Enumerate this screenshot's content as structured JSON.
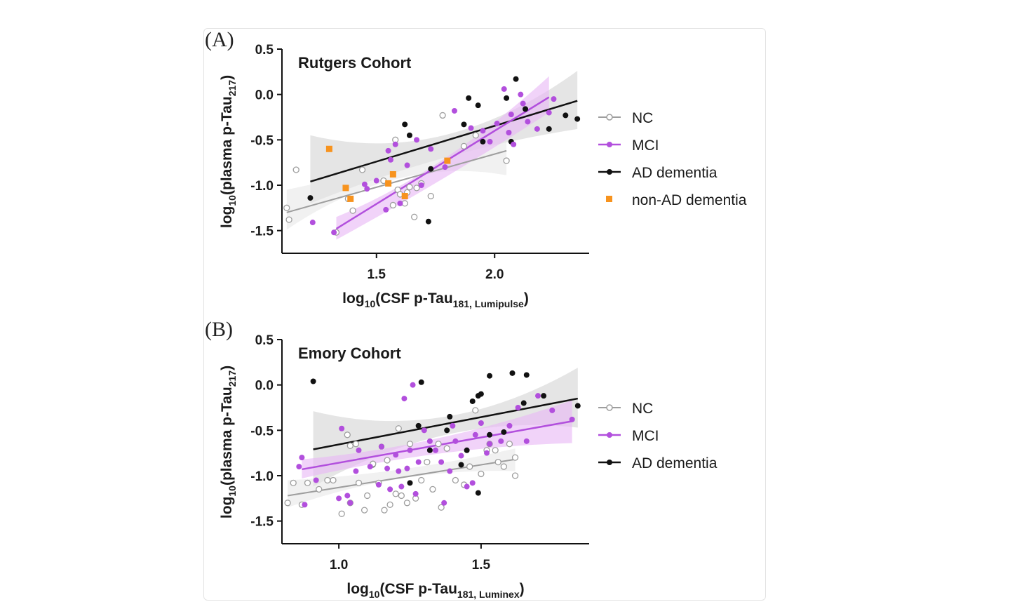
{
  "figure": {
    "panels": [
      {
        "letter": "(A)",
        "title": "Rutgers  Cohort",
        "ylabel": {
          "base": "log",
          "base_sub": "10",
          "mid": "(plasma p-Tau",
          "mid_sub": "217",
          "end": ")"
        },
        "xlabel": {
          "base": "log",
          "base_sub": "10",
          "mid": "(CSF p-Tau",
          "mid_sub": "181, Lumipulse",
          "end": ")"
        },
        "legend": [
          "NC",
          "MCI",
          "AD dementia",
          "non-AD dementia"
        ]
      },
      {
        "letter": "(B)",
        "title": "Emory  Cohort",
        "ylabel": {
          "base": "log",
          "base_sub": "10",
          "mid": "(plasma p-Tau",
          "mid_sub": "217",
          "end": ")"
        },
        "xlabel": {
          "base": "log",
          "base_sub": "10",
          "mid": "(CSF p-Tau",
          "mid_sub": "181, Luminex",
          "end": ")"
        },
        "legend": [
          "NC",
          "MCI",
          "AD dementia"
        ]
      }
    ]
  },
  "colors": {
    "NC": "#9e9e9e",
    "MCI": "#b24fdd",
    "AD dementia": "#111111",
    "non-AD dementia": "#f7931e",
    "NC_band": "#e6e6e6",
    "MCI_band": "#e7b5f5",
    "AD_band": "#d3d3d3"
  },
  "chart_data": [
    {
      "type": "scatter",
      "title": "Rutgers  Cohort",
      "xlim": [
        1.1,
        2.4
      ],
      "ylim": [
        -1.75,
        0.5
      ],
      "xticks": [
        1.5,
        2.0
      ],
      "xtick_labels": [
        "1.5",
        "2.0"
      ],
      "yticks": [
        0.5,
        0.0,
        -0.5,
        -1.0,
        -1.5
      ],
      "ytick_labels": [
        "0.5",
        "0.0",
        "-0.5",
        "-1.0",
        "-1.5"
      ],
      "grid": false,
      "legend_position": "right",
      "series": [
        {
          "name": "NC",
          "marker": "open-circle",
          "points": [
            [
              1.12,
              -1.25
            ],
            [
              1.13,
              -1.38
            ],
            [
              1.16,
              -0.83
            ],
            [
              1.33,
              -1.52
            ],
            [
              1.38,
              -1.15
            ],
            [
              1.4,
              -1.28
            ],
            [
              1.44,
              -0.83
            ],
            [
              1.53,
              -0.95
            ],
            [
              1.57,
              -1.22
            ],
            [
              1.58,
              -0.5
            ],
            [
              1.59,
              -1.05
            ],
            [
              1.6,
              -1.1
            ],
            [
              1.62,
              -1.2
            ],
            [
              1.63,
              -1.08
            ],
            [
              1.64,
              -1.02
            ],
            [
              1.66,
              -1.35
            ],
            [
              1.67,
              -1.03
            ],
            [
              1.69,
              -0.98
            ],
            [
              1.73,
              -1.12
            ],
            [
              1.78,
              -0.23
            ],
            [
              1.87,
              -0.57
            ],
            [
              1.92,
              -0.45
            ],
            [
              2.05,
              -0.73
            ]
          ],
          "fit": {
            "x": [
              1.12,
              2.05
            ],
            "y": [
              -1.3,
              -0.62
            ]
          },
          "band": {
            "x": [
              1.12,
              2.05
            ],
            "lower_start": -1.49,
            "upper_start": -1.05,
            "lower_mid": -0.93,
            "upper_mid": -0.74,
            "lower_end": -0.89,
            "upper_end": -0.3
          }
        },
        {
          "name": "MCI",
          "marker": "filled-circle",
          "points": [
            [
              1.23,
              -1.41
            ],
            [
              1.32,
              -1.52
            ],
            [
              1.45,
              -0.99
            ],
            [
              1.46,
              -1.04
            ],
            [
              1.5,
              -0.95
            ],
            [
              1.54,
              -1.27
            ],
            [
              1.55,
              -0.62
            ],
            [
              1.56,
              -0.72
            ],
            [
              1.58,
              -0.55
            ],
            [
              1.6,
              -1.2
            ],
            [
              1.63,
              -0.78
            ],
            [
              1.67,
              -0.5
            ],
            [
              1.69,
              -1.0
            ],
            [
              1.73,
              -0.6
            ],
            [
              1.79,
              -0.8
            ],
            [
              1.83,
              -0.18
            ],
            [
              1.9,
              -0.37
            ],
            [
              1.95,
              -0.4
            ],
            [
              1.98,
              -0.52
            ],
            [
              2.01,
              -0.32
            ],
            [
              2.04,
              0.06
            ],
            [
              2.06,
              -0.42
            ],
            [
              2.07,
              -0.22
            ],
            [
              2.08,
              -0.55
            ],
            [
              2.11,
              0.0
            ],
            [
              2.12,
              -0.1
            ],
            [
              2.14,
              -0.3
            ],
            [
              2.18,
              -0.38
            ],
            [
              2.23,
              -0.2
            ],
            [
              2.25,
              -0.05
            ]
          ],
          "fit": {
            "x": [
              1.33,
              2.23
            ],
            "y": [
              -1.48,
              -0.03
            ]
          },
          "band": {
            "x": [
              1.33,
              2.23
            ],
            "lower_start": -1.6,
            "upper_start": -1.35,
            "lower_mid": -0.93,
            "upper_mid": -0.72,
            "lower_end": -0.2,
            "upper_end": 0.2
          }
        },
        {
          "name": "AD dementia",
          "marker": "filled-circle",
          "points": [
            [
              1.22,
              -1.14
            ],
            [
              1.62,
              -0.33
            ],
            [
              1.64,
              -0.45
            ],
            [
              1.72,
              -1.4
            ],
            [
              1.73,
              -0.82
            ],
            [
              1.87,
              -0.33
            ],
            [
              1.89,
              -0.04
            ],
            [
              1.93,
              -0.12
            ],
            [
              1.95,
              -0.52
            ],
            [
              2.05,
              -0.04
            ],
            [
              2.07,
              -0.52
            ],
            [
              2.09,
              0.17
            ],
            [
              2.13,
              -0.16
            ],
            [
              2.23,
              -0.38
            ],
            [
              2.3,
              -0.23
            ],
            [
              2.35,
              -0.27
            ]
          ],
          "fit": {
            "x": [
              1.22,
              2.35
            ],
            "y": [
              -0.96,
              -0.07
            ]
          },
          "band": {
            "x": [
              1.22,
              2.35
            ],
            "lower_start": -1.2,
            "upper_start": -0.45,
            "lower_mid": -0.7,
            "upper_mid": -0.45,
            "lower_end": -0.38,
            "upper_end": 0.26
          }
        },
        {
          "name": "non-AD dementia",
          "marker": "filled-square",
          "points": [
            [
              1.3,
              -0.6
            ],
            [
              1.37,
              -1.03
            ],
            [
              1.39,
              -1.15
            ],
            [
              1.55,
              -0.98
            ],
            [
              1.57,
              -0.88
            ],
            [
              1.62,
              -1.12
            ],
            [
              1.8,
              -0.73
            ]
          ]
        }
      ],
      "xlabel": "log10(CSF p-Tau181, Lumipulse)",
      "ylabel": "log10(plasma p-Tau217)"
    },
    {
      "type": "scatter",
      "title": "Emory  Cohort",
      "xlim": [
        0.8,
        1.88
      ],
      "ylim": [
        -1.75,
        0.5
      ],
      "xticks": [
        1.0,
        1.5
      ],
      "xtick_labels": [
        "1.0",
        "1.5"
      ],
      "yticks": [
        0.5,
        0.0,
        -0.5,
        -1.0,
        -1.5
      ],
      "ytick_labels": [
        "0.5",
        "0.0",
        "-0.5",
        "-1.0",
        "-1.5"
      ],
      "grid": false,
      "legend_position": "right",
      "series": [
        {
          "name": "NC",
          "marker": "open-circle",
          "points": [
            [
              0.82,
              -1.3
            ],
            [
              0.84,
              -1.08
            ],
            [
              0.87,
              -1.32
            ],
            [
              0.89,
              -1.08
            ],
            [
              0.93,
              -1.15
            ],
            [
              0.96,
              -1.05
            ],
            [
              0.98,
              -1.05
            ],
            [
              1.01,
              -1.42
            ],
            [
              1.03,
              -0.55
            ],
            [
              1.04,
              -0.67
            ],
            [
              1.04,
              -1.3
            ],
            [
              1.06,
              -0.65
            ],
            [
              1.07,
              -1.08
            ],
            [
              1.09,
              -1.38
            ],
            [
              1.1,
              -1.22
            ],
            [
              1.12,
              -0.87
            ],
            [
              1.14,
              -1.08
            ],
            [
              1.16,
              -1.38
            ],
            [
              1.17,
              -0.83
            ],
            [
              1.18,
              -1.32
            ],
            [
              1.2,
              -1.2
            ],
            [
              1.21,
              -0.48
            ],
            [
              1.22,
              -1.22
            ],
            [
              1.24,
              -1.3
            ],
            [
              1.25,
              -0.65
            ],
            [
              1.27,
              -1.25
            ],
            [
              1.29,
              -1.05
            ],
            [
              1.31,
              -0.85
            ],
            [
              1.33,
              -1.15
            ],
            [
              1.35,
              -0.65
            ],
            [
              1.36,
              -1.35
            ],
            [
              1.38,
              -0.7
            ],
            [
              1.41,
              -1.05
            ],
            [
              1.44,
              -1.1
            ],
            [
              1.46,
              -0.9
            ],
            [
              1.48,
              -0.28
            ],
            [
              1.5,
              -0.98
            ],
            [
              1.52,
              -0.72
            ],
            [
              1.53,
              -0.65
            ],
            [
              1.55,
              -0.72
            ],
            [
              1.56,
              -0.85
            ],
            [
              1.58,
              -0.9
            ],
            [
              1.6,
              -0.65
            ],
            [
              1.62,
              -0.8
            ],
            [
              1.62,
              -1.0
            ]
          ],
          "fit": {
            "x": [
              0.82,
              1.62
            ],
            "y": [
              -1.22,
              -0.82
            ]
          },
          "band": {
            "x": [
              0.82,
              1.62
            ],
            "lower_start": -1.35,
            "upper_start": -1.05,
            "lower_mid": -1.03,
            "upper_mid": -0.93,
            "lower_end": -0.95,
            "upper_end": -0.7
          }
        },
        {
          "name": "MCI",
          "marker": "filled-circle",
          "points": [
            [
              0.86,
              -0.9
            ],
            [
              0.87,
              -0.8
            ],
            [
              0.88,
              -1.32
            ],
            [
              0.92,
              -1.05
            ],
            [
              1.0,
              -1.25
            ],
            [
              1.01,
              -0.48
            ],
            [
              1.03,
              -1.22
            ],
            [
              1.04,
              -1.3
            ],
            [
              1.06,
              -0.95
            ],
            [
              1.07,
              -0.72
            ],
            [
              1.11,
              -0.9
            ],
            [
              1.14,
              -1.1
            ],
            [
              1.15,
              -0.68
            ],
            [
              1.17,
              -0.92
            ],
            [
              1.18,
              -1.15
            ],
            [
              1.2,
              -0.77
            ],
            [
              1.21,
              -0.95
            ],
            [
              1.22,
              -1.12
            ],
            [
              1.23,
              -0.15
            ],
            [
              1.24,
              -0.92
            ],
            [
              1.25,
              -0.72
            ],
            [
              1.26,
              0.0
            ],
            [
              1.27,
              -1.2
            ],
            [
              1.28,
              -0.85
            ],
            [
              1.3,
              -0.5
            ],
            [
              1.32,
              -0.62
            ],
            [
              1.34,
              -0.72
            ],
            [
              1.36,
              -0.85
            ],
            [
              1.37,
              -1.3
            ],
            [
              1.39,
              -0.95
            ],
            [
              1.4,
              -0.45
            ],
            [
              1.41,
              -0.62
            ],
            [
              1.43,
              -0.78
            ],
            [
              1.45,
              -1.12
            ],
            [
              1.47,
              -1.08
            ],
            [
              1.48,
              -0.55
            ],
            [
              1.5,
              -0.42
            ],
            [
              1.52,
              -0.75
            ],
            [
              1.53,
              -0.65
            ],
            [
              1.57,
              -0.62
            ],
            [
              1.6,
              -0.45
            ],
            [
              1.63,
              -0.25
            ],
            [
              1.66,
              -0.62
            ],
            [
              1.7,
              -0.12
            ],
            [
              1.75,
              -0.28
            ],
            [
              1.82,
              -0.38
            ]
          ],
          "fit": {
            "x": [
              0.87,
              1.82
            ],
            "y": [
              -0.93,
              -0.4
            ]
          },
          "band": {
            "x": [
              0.87,
              1.82
            ],
            "lower_start": -1.03,
            "upper_start": -0.82,
            "lower_mid": -0.76,
            "upper_mid": -0.59,
            "lower_end": -0.64,
            "upper_end": -0.17
          }
        },
        {
          "name": "AD dementia",
          "marker": "filled-circle",
          "points": [
            [
              0.91,
              0.04
            ],
            [
              1.12,
              -0.88
            ],
            [
              1.15,
              -0.68
            ],
            [
              1.25,
              -1.08
            ],
            [
              1.28,
              -0.45
            ],
            [
              1.29,
              0.03
            ],
            [
              1.32,
              -0.72
            ],
            [
              1.38,
              -0.5
            ],
            [
              1.39,
              -0.35
            ],
            [
              1.43,
              -0.88
            ],
            [
              1.45,
              -0.72
            ],
            [
              1.47,
              -0.18
            ],
            [
              1.49,
              -0.12
            ],
            [
              1.5,
              -0.1
            ],
            [
              1.49,
              -1.19
            ],
            [
              1.53,
              -0.55
            ],
            [
              1.53,
              0.1
            ],
            [
              1.58,
              -0.52
            ],
            [
              1.61,
              0.13
            ],
            [
              1.65,
              -0.2
            ],
            [
              1.66,
              0.11
            ],
            [
              1.72,
              -0.12
            ],
            [
              1.84,
              -0.23
            ]
          ],
          "fit": {
            "x": [
              0.91,
              1.84
            ],
            "y": [
              -0.71,
              -0.15
            ]
          },
          "band": {
            "x": [
              0.91,
              1.84
            ],
            "lower_start": -1.12,
            "upper_start": -0.29,
            "lower_mid": -0.55,
            "upper_mid": -0.35,
            "lower_end": -0.47,
            "upper_end": 0.19
          }
        }
      ],
      "xlabel": "log10(CSF p-Tau181, Luminex)",
      "ylabel": "log10(plasma p-Tau217)"
    }
  ]
}
